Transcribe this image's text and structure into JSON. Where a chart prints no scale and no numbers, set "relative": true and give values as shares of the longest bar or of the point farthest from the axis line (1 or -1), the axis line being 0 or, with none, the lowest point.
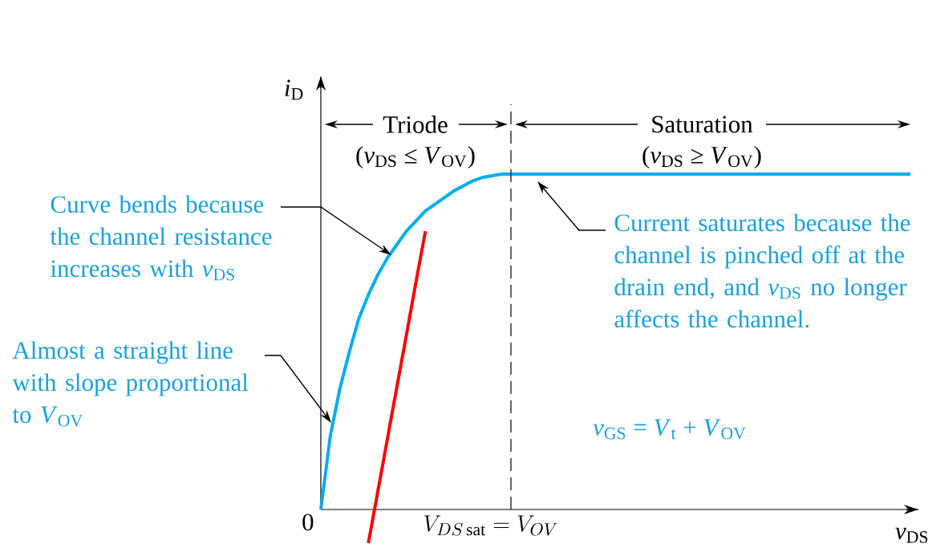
{
  "chart_data": {
    "type": "line",
    "relative": true,
    "xlabel": "*v*$_{DS}$",
    "ylabel": "*i*$_{D}$",
    "line_style": "solid",
    "categories": [
      null,
      null,
      null,
      null,
      null,
      null,
      null,
      null,
      null,
      null,
      null,
      null,
      null,
      null,
      null,
      null,
      null,
      null,
      null,
      null,
      null,
      null,
      null,
      null,
      null,
      null,
      null,
      null,
      null,
      null,
      null,
      null,
      null,
      null,
      null,
      null,
      null,
      null,
      null,
      null,
      null,
      null,
      null,
      null,
      null,
      null,
      null,
      null,
      null,
      null,
      null,
      null,
      null,
      null,
      null,
      null,
      null,
      null,
      null,
      null,
      null,
      null,
      null
    ],
    "series": [
      {
        "color": "#00aeef",
        "values": [
          0,
          0.22,
          0.36,
          0.47,
          0.57,
          0.64,
          0.7,
          0.75,
          0.79,
          0.83,
          0.86,
          0.89,
          0.91,
          0.93,
          0.95,
          0.965,
          0.98,
          0.99,
          0.995,
          1,
          1,
          1,
          1,
          1,
          1,
          1,
          1,
          1,
          1,
          1,
          1,
          1,
          1,
          1,
          1,
          1,
          1,
          1,
          1,
          1,
          1,
          1,
          1,
          1,
          1,
          1,
          1,
          1,
          1,
          1,
          1,
          1,
          1,
          1,
          1,
          1,
          1,
          1,
          1,
          1,
          1,
          1,
          1
        ]
      },
      {
        "color": "#ff0000",
        "values": [
          null,
          null,
          null,
          null,
          null,
          -0.1,
          0.055,
          0.21,
          0.366,
          0.52,
          0.677,
          0.83,
          null,
          null,
          null,
          null,
          null,
          null,
          null,
          null,
          null,
          null,
          null,
          null,
          null,
          null,
          null,
          null,
          null,
          null,
          null,
          null,
          null,
          null,
          null,
          null,
          null,
          null,
          null,
          null,
          null,
          null,
          null,
          null,
          null,
          null,
          null,
          null,
          null,
          null,
          null,
          null,
          null,
          null,
          null,
          null,
          null,
          null,
          null,
          null,
          null,
          null,
          null
        ]
      }
    ],
    "annotations": [
      "Curve bends because the channel resistance increases with *v*$_{DS}$",
      "Almost a straight line with slope proportional to *V*$_{OV}$",
      "Current saturates because the channel is pinched off at the drain end, and *v*$_{DS}$ no longer affects the channel.",
      "*v*$_{GS}$ = *V*$_{t}$ + *V*$_{OV}$",
      "Triode",
      "(*v*$_{DS}$ ≤ *V*$_{OV}$)",
      "Saturation",
      "(*v*$_{DS}$ ≥ *V*$_{OV}$)",
      "0",
      "V_{DS\\,\\mathrm{sat}} = V_{OV}"
    ]
  }
}
